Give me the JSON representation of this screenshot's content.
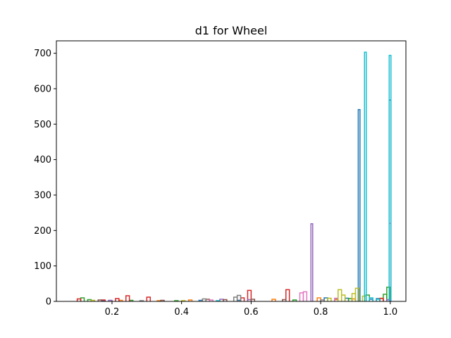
{
  "chart_data": {
    "type": "step-histogram",
    "title": "d1 for Wheel",
    "xlabel": "",
    "ylabel": "",
    "xlim": [
      0.04,
      1.045
    ],
    "ylim": [
      0,
      735
    ],
    "x_ticks": [
      0.2,
      0.4,
      0.6,
      0.8,
      1.0
    ],
    "x_tick_labels": [
      "0.2",
      "0.4",
      "0.6",
      "0.8",
      "1.0"
    ],
    "y_ticks": [
      0,
      100,
      200,
      300,
      400,
      500,
      600,
      700
    ],
    "y_tick_labels": [
      "0",
      "100",
      "200",
      "300",
      "400",
      "500",
      "600",
      "700"
    ],
    "grid": false,
    "legend": "none",
    "series": [
      {
        "color": "#1f77b4",
        "bins": [
          [
            0.17,
            0.18,
            2
          ],
          [
            0.45,
            0.46,
            3
          ],
          [
            0.56,
            0.57,
            3
          ],
          [
            0.81,
            0.82,
            10
          ],
          [
            0.84,
            0.85,
            8
          ],
          [
            0.87,
            0.88,
            9
          ],
          [
            0.908,
            0.913,
            541
          ],
          [
            0.94,
            0.95,
            6
          ],
          [
            0.96,
            0.97,
            8
          ],
          [
            0.997,
            1.002,
            568
          ]
        ]
      },
      {
        "color": "#ff7f0e",
        "bins": [
          [
            0.22,
            0.23,
            3
          ],
          [
            0.33,
            0.34,
            2
          ],
          [
            0.42,
            0.43,
            4
          ],
          [
            0.66,
            0.67,
            6
          ],
          [
            0.79,
            0.8,
            10
          ],
          [
            0.84,
            0.85,
            5
          ],
          [
            0.89,
            0.9,
            7
          ],
          [
            0.97,
            0.98,
            9
          ]
        ]
      },
      {
        "color": "#2ca02c",
        "bins": [
          [
            0.11,
            0.12,
            10
          ],
          [
            0.13,
            0.14,
            5
          ],
          [
            0.25,
            0.26,
            3
          ],
          [
            0.38,
            0.39,
            2
          ],
          [
            0.72,
            0.73,
            4
          ],
          [
            0.88,
            0.89,
            8
          ],
          [
            0.93,
            0.94,
            18
          ],
          [
            0.98,
            0.99,
            20
          ],
          [
            0.99,
            1.0,
            40
          ]
        ]
      },
      {
        "color": "#d62728",
        "bins": [
          [
            0.1,
            0.11,
            7
          ],
          [
            0.17,
            0.18,
            4
          ],
          [
            0.21,
            0.22,
            8
          ],
          [
            0.24,
            0.25,
            16
          ],
          [
            0.3,
            0.31,
            12
          ],
          [
            0.57,
            0.58,
            10
          ],
          [
            0.59,
            0.6,
            31
          ],
          [
            0.7,
            0.71,
            33
          ],
          [
            0.97,
            0.98,
            8
          ]
        ]
      },
      {
        "color": "#9467bd",
        "bins": [
          [
            0.19,
            0.2,
            3
          ],
          [
            0.51,
            0.52,
            6
          ],
          [
            0.59,
            0.6,
            5
          ],
          [
            0.772,
            0.777,
            219
          ],
          [
            0.99,
            1.0,
            5
          ]
        ]
      },
      {
        "color": "#8c564b",
        "bins": [
          [
            0.16,
            0.17,
            4
          ],
          [
            0.34,
            0.35,
            3
          ],
          [
            0.47,
            0.48,
            6
          ],
          [
            0.52,
            0.53,
            5
          ],
          [
            0.6,
            0.61,
            6
          ],
          [
            0.69,
            0.7,
            5
          ]
        ]
      },
      {
        "color": "#e377c2",
        "bins": [
          [
            0.48,
            0.49,
            4
          ],
          [
            0.74,
            0.75,
            24
          ],
          [
            0.75,
            0.76,
            27
          ],
          [
            0.84,
            0.85,
            9
          ],
          [
            0.997,
            1.002,
            220
          ]
        ]
      },
      {
        "color": "#7f7f7f",
        "bins": [
          [
            0.28,
            0.29,
            2
          ],
          [
            0.46,
            0.47,
            7
          ],
          [
            0.55,
            0.56,
            12
          ],
          [
            0.56,
            0.57,
            17
          ],
          [
            0.8,
            0.81,
            4
          ]
        ]
      },
      {
        "color": "#bcbd22",
        "bins": [
          [
            0.14,
            0.15,
            3
          ],
          [
            0.4,
            0.41,
            2
          ],
          [
            0.82,
            0.83,
            9
          ],
          [
            0.85,
            0.86,
            33
          ],
          [
            0.86,
            0.87,
            18
          ],
          [
            0.89,
            0.9,
            22
          ],
          [
            0.9,
            0.91,
            37
          ],
          [
            0.92,
            0.93,
            15
          ]
        ]
      },
      {
        "color": "#17becf",
        "bins": [
          [
            0.5,
            0.51,
            2
          ],
          [
            0.926,
            0.931,
            703
          ],
          [
            0.94,
            0.95,
            10
          ],
          [
            0.96,
            0.97,
            6
          ],
          [
            0.997,
            1.002,
            694
          ]
        ]
      }
    ]
  }
}
